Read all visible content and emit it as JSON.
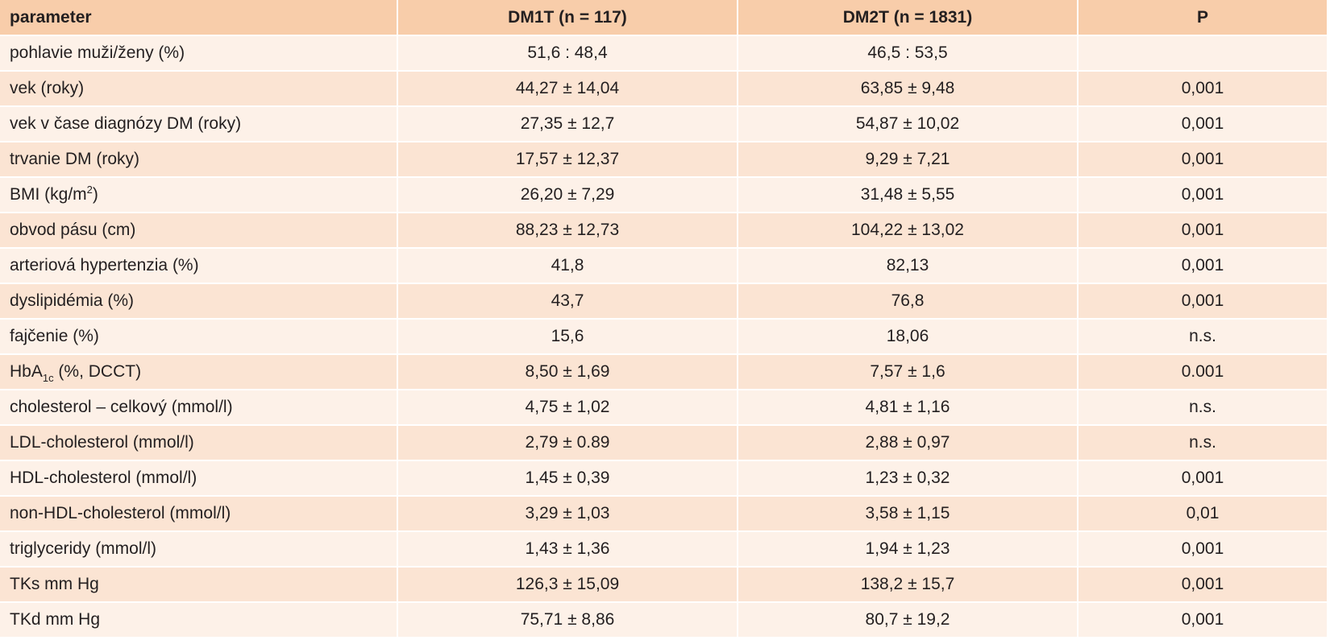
{
  "table": {
    "headers": [
      "parameter",
      "DM1T (n = 117)",
      "DM2T (n = 1831)",
      "P"
    ],
    "rows": [
      {
        "label": "pohlavie muži/ženy (%)",
        "dm1t": "51,6 : 48,4",
        "dm2t": "46,5 : 53,5",
        "p": ""
      },
      {
        "label": "vek (roky)",
        "dm1t": "44,27 ± 14,04",
        "dm2t": "63,85 ± 9,48",
        "p": "0,001"
      },
      {
        "label": "vek v čase diagnózy DM (roky)",
        "dm1t": "27,35 ± 12,7",
        "dm2t": "54,87 ± 10,02",
        "p": "0,001"
      },
      {
        "label": "trvanie DM (roky)",
        "dm1t": "17,57 ± 12,37",
        "dm2t": "9,29 ± 7,21",
        "p": "0,001"
      },
      {
        "label_pre": "BMI (kg/m",
        "label_sup": "2",
        "label_post": ")",
        "dm1t": "26,20 ± 7,29",
        "dm2t": "31,48 ± 5,55",
        "p": "0,001"
      },
      {
        "label": "obvod pásu (cm)",
        "dm1t": "88,23 ± 12,73",
        "dm2t": "104,22 ± 13,02",
        "p": "0,001"
      },
      {
        "label": "arteriová hypertenzia (%)",
        "dm1t": "41,8",
        "dm2t": "82,13",
        "p": "0,001"
      },
      {
        "label": "dyslipidémia (%)",
        "dm1t": "43,7",
        "dm2t": "76,8",
        "p": "0,001"
      },
      {
        "label": "fajčenie (%)",
        "dm1t": "15,6",
        "dm2t": "18,06",
        "p": "n.s."
      },
      {
        "label_pre": "HbA",
        "label_sub": "1c",
        "label_post": " (%, DCCT)",
        "dm1t": "8,50 ± 1,69",
        "dm2t": "7,57 ± 1,6",
        "p": "0.001"
      },
      {
        "label": "cholesterol – celkový (mmol/l)",
        "dm1t": "4,75 ± 1,02",
        "dm2t": "4,81 ± 1,16",
        "p": "n.s."
      },
      {
        "label": "LDL-cholesterol (mmol/l)",
        "dm1t": "2,79 ± 0.89",
        "dm2t": "2,88 ± 0,97",
        "p": "n.s."
      },
      {
        "label": "HDL-cholesterol (mmol/l)",
        "dm1t": "1,45 ± 0,39",
        "dm2t": "1,23 ± 0,32",
        "p": "0,001"
      },
      {
        "label": "non-HDL-cholesterol (mmol/l)",
        "dm1t": "3,29 ± 1,03",
        "dm2t": "3,58 ± 1,15",
        "p": "0,01"
      },
      {
        "label": "triglyceridy (mmol/l)",
        "dm1t": "1,43 ± 1,36",
        "dm2t": "1,94 ± 1,23",
        "p": "0,001"
      },
      {
        "label": "TKs mm Hg",
        "dm1t": "126,3 ± 15,09",
        "dm2t": "138,2 ± 15,7",
        "p": "0,001"
      },
      {
        "label": "TKd mm Hg",
        "dm1t": "75,71 ± 8,86",
        "dm2t": "80,7 ± 19,2",
        "p": "0,001"
      }
    ]
  }
}
